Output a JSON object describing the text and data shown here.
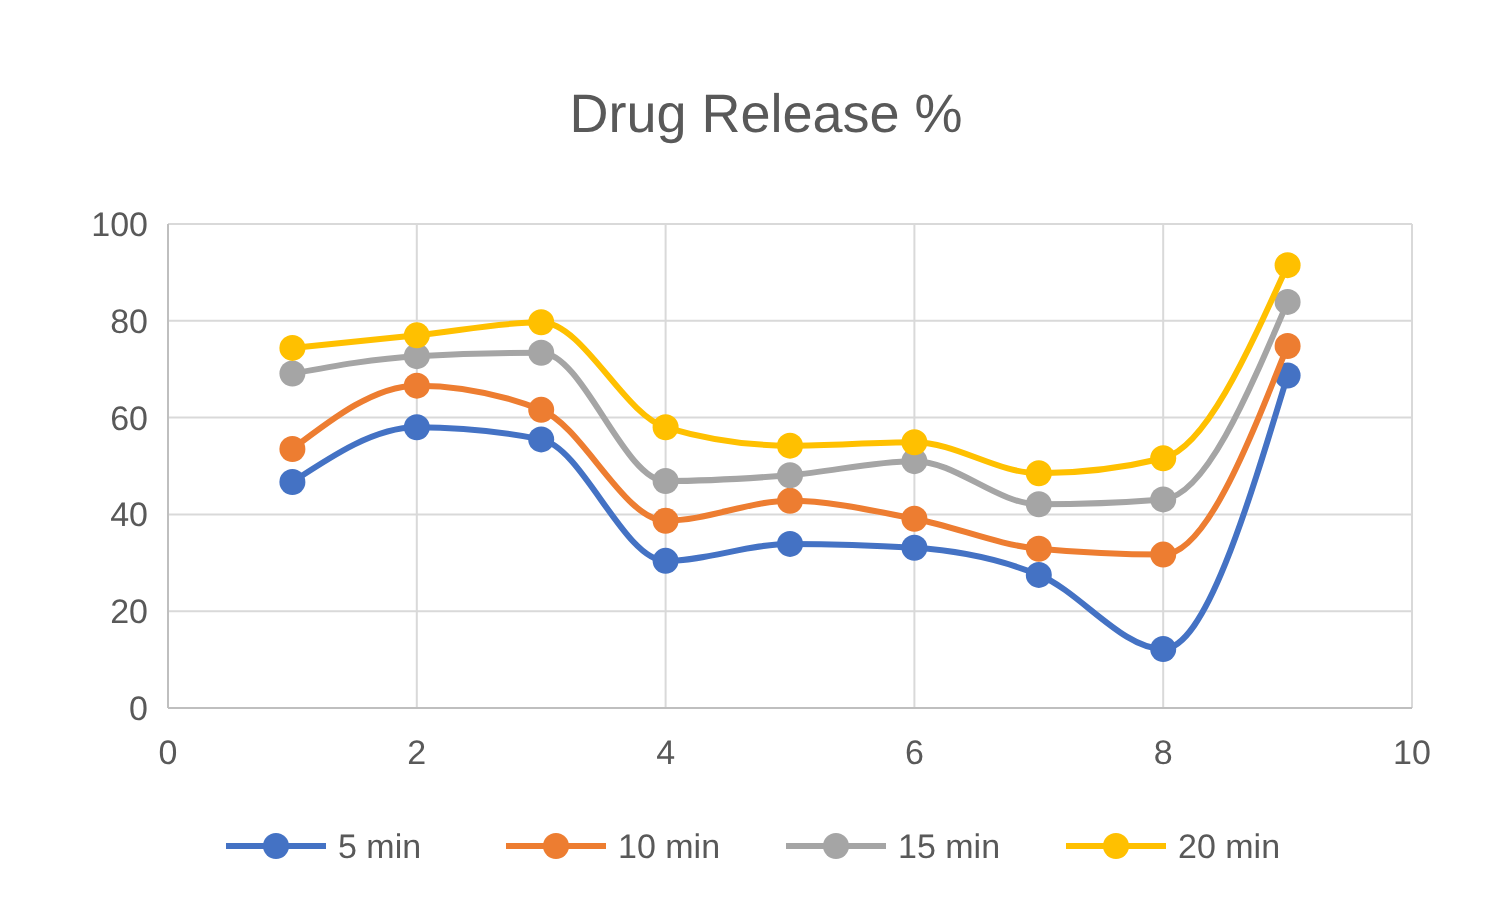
{
  "chart_data": {
    "type": "line",
    "title": "Drug Release %",
    "x": [
      1,
      2,
      3,
      4,
      5,
      6,
      7,
      8,
      9
    ],
    "xlim": [
      0,
      10
    ],
    "xticks": [
      0,
      2,
      4,
      6,
      8,
      10
    ],
    "ylim": [
      0,
      100
    ],
    "yticks": [
      0,
      20,
      40,
      60,
      80,
      100
    ],
    "grid": true,
    "legend": "bottom",
    "marker": "circle",
    "line_style": "solid",
    "series": [
      {
        "name": "5 min",
        "color": "#4472c4",
        "values": [
          46.7,
          58,
          55.5,
          30.4,
          33.9,
          33.1,
          27.5,
          12.2,
          68.7
        ]
      },
      {
        "name": "10 min",
        "color": "#ed7d31",
        "values": [
          53.5,
          66.6,
          61.6,
          38.7,
          42.8,
          39.1,
          32.9,
          31.7,
          74.8
        ]
      },
      {
        "name": "15 min",
        "color": "#a5a5a5",
        "values": [
          69.1,
          72.7,
          73.4,
          46.9,
          48.1,
          51,
          42.1,
          43.1,
          83.9
        ]
      },
      {
        "name": "20 min",
        "color": "#ffc000",
        "values": [
          74.4,
          77,
          79.7,
          58,
          54.2,
          54.9,
          48.5,
          51.6,
          91.5
        ]
      }
    ]
  }
}
